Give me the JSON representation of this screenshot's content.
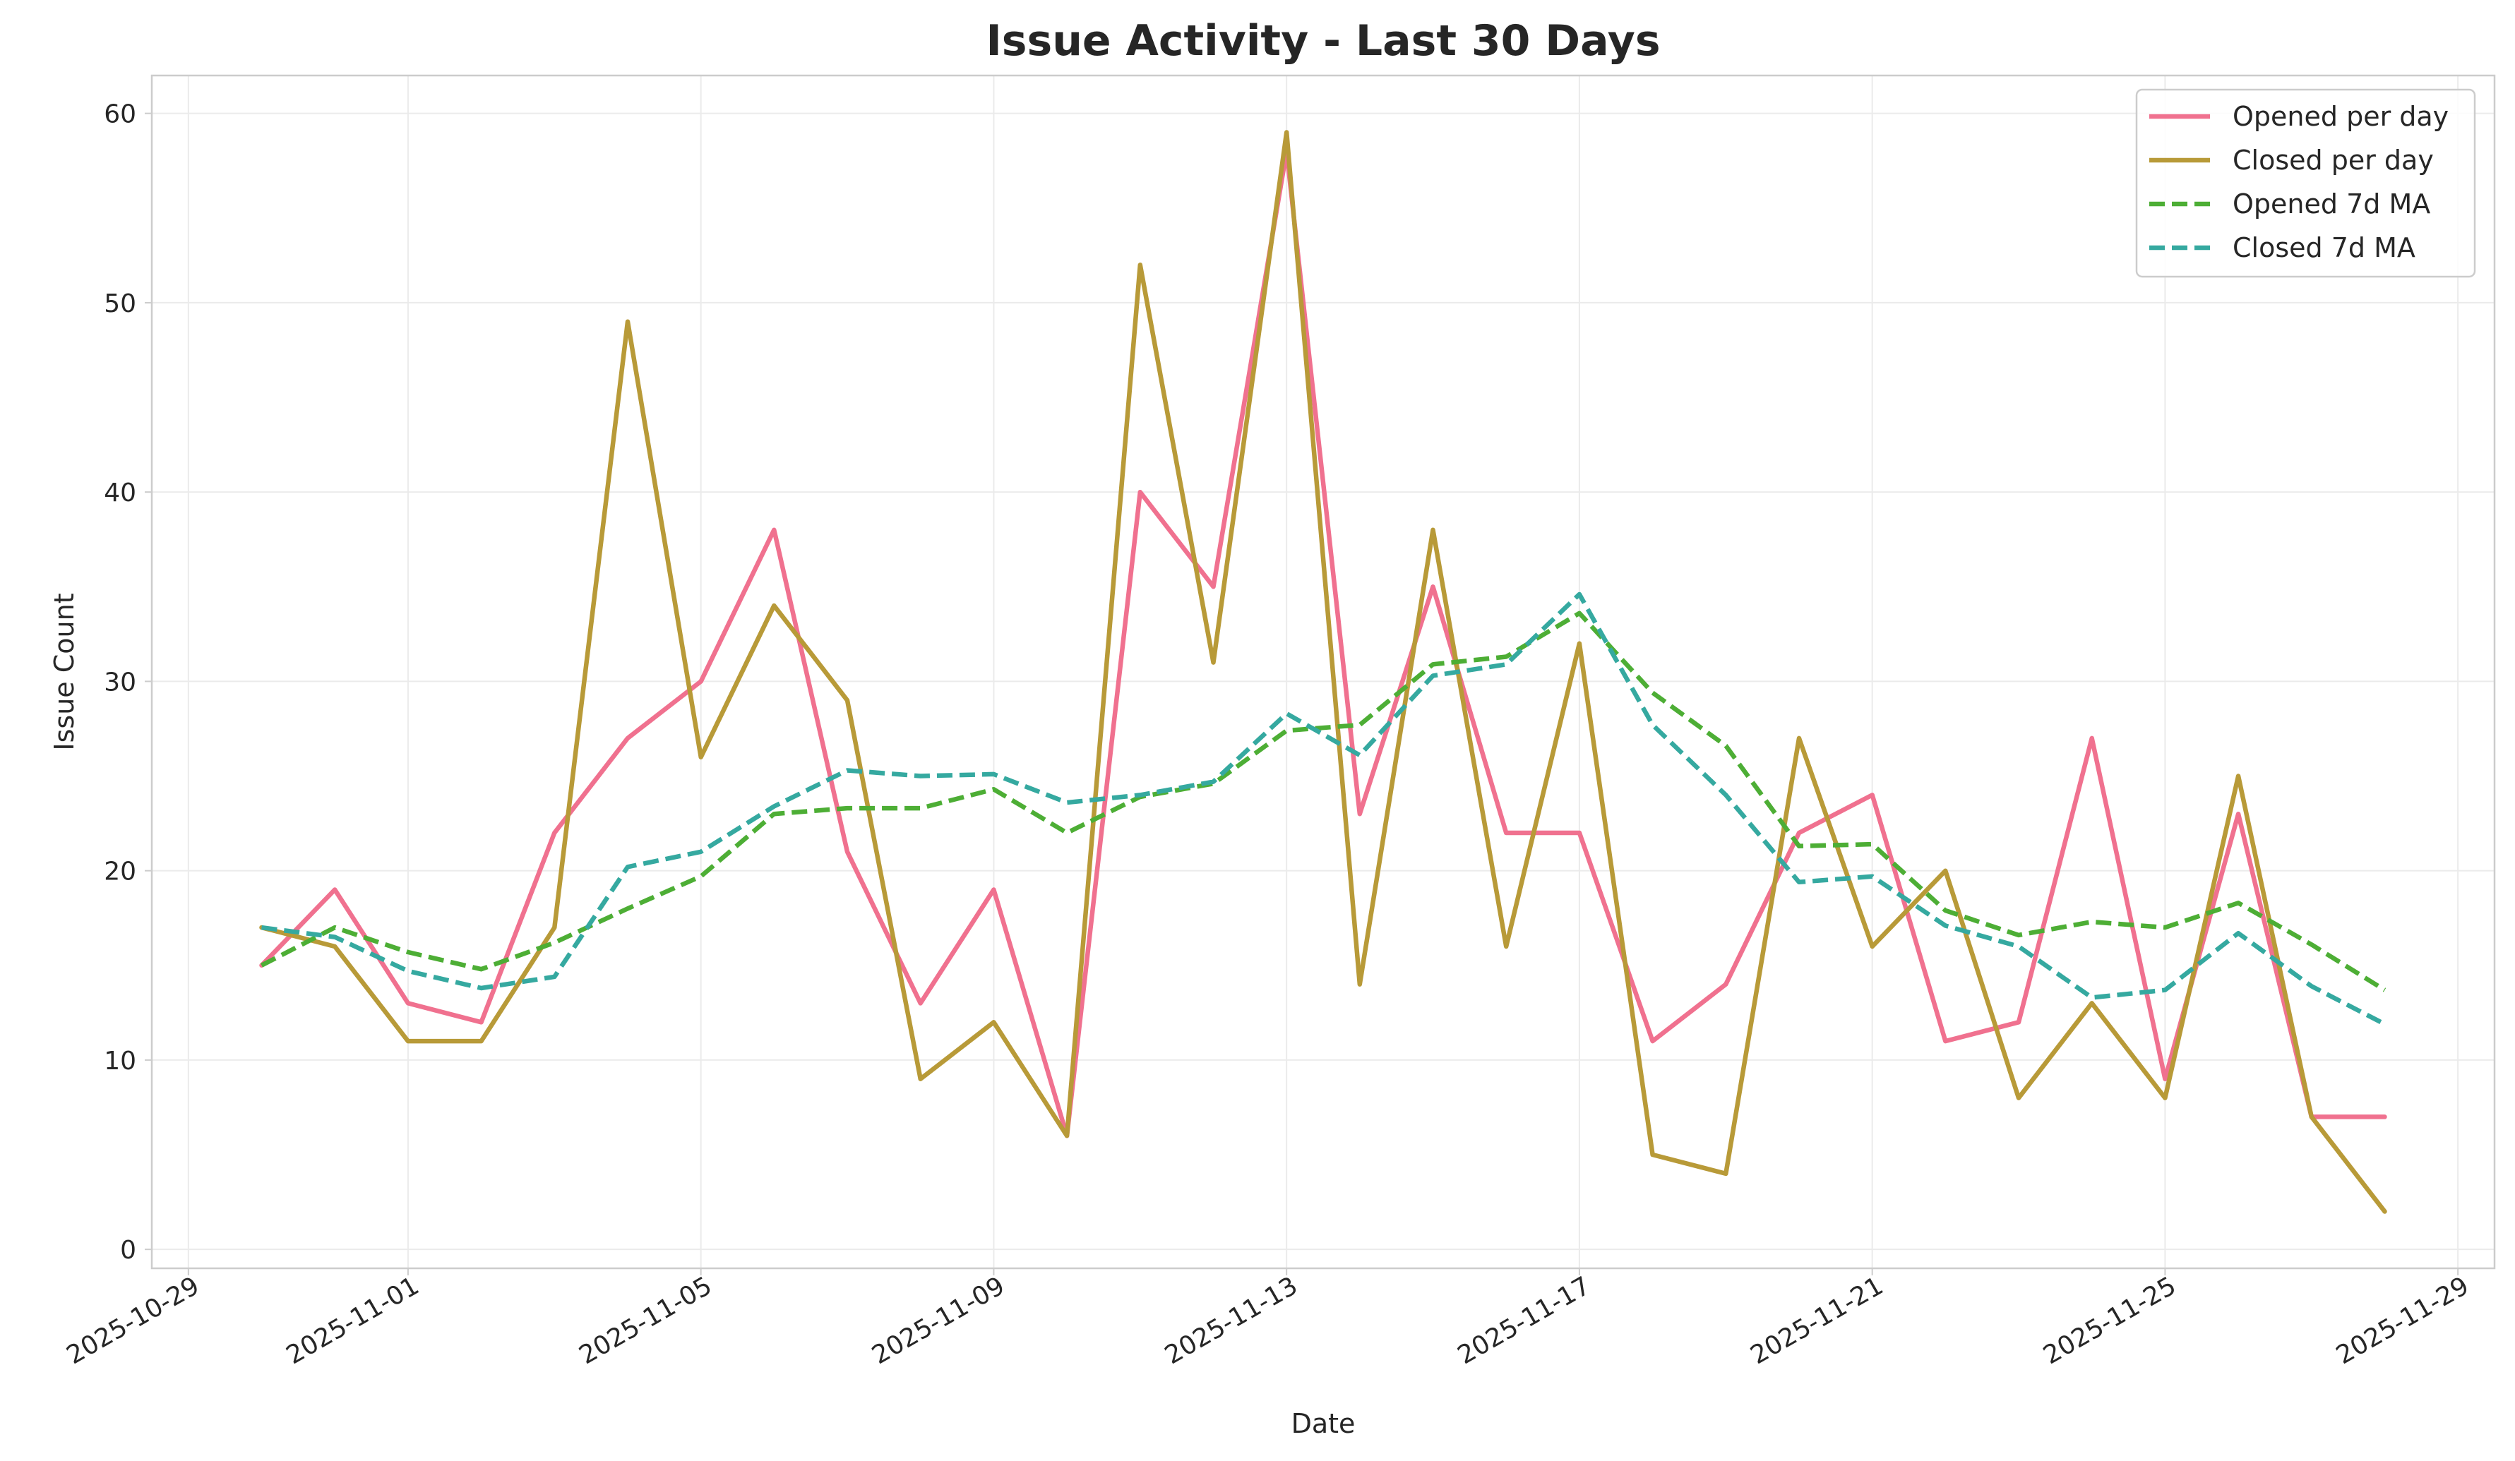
{
  "chart_data": {
    "type": "line",
    "title": "Issue Activity - Last 30 Days",
    "xlabel": "Date",
    "ylabel": "Issue Count",
    "ylim": [
      -1,
      62
    ],
    "yticks": [
      0,
      10,
      20,
      30,
      40,
      50,
      60
    ],
    "xlim": [
      "2025-10-28T12:00",
      "2025-11-29T12:00"
    ],
    "xticks": [
      "2025-10-29",
      "2025-11-01",
      "2025-11-05",
      "2025-11-09",
      "2025-11-13",
      "2025-11-17",
      "2025-11-21",
      "2025-11-25",
      "2025-11-29"
    ],
    "grid": true,
    "legend_position": "top-right",
    "x": [
      "2025-10-30",
      "2025-10-31",
      "2025-11-01",
      "2025-11-02",
      "2025-11-03",
      "2025-11-04",
      "2025-11-05",
      "2025-11-06",
      "2025-11-07",
      "2025-11-08",
      "2025-11-09",
      "2025-11-10",
      "2025-11-11",
      "2025-11-12",
      "2025-11-13",
      "2025-11-14",
      "2025-11-15",
      "2025-11-16",
      "2025-11-17",
      "2025-11-18",
      "2025-11-19",
      "2025-11-20",
      "2025-11-21",
      "2025-11-22",
      "2025-11-23",
      "2025-11-24",
      "2025-11-25",
      "2025-11-26",
      "2025-11-27",
      "2025-11-28"
    ],
    "series": [
      {
        "name": "Opened per day",
        "color": "#f0718f",
        "style": "solid",
        "values": [
          15,
          19,
          13,
          12,
          22,
          27,
          30,
          38,
          21,
          13,
          19,
          6,
          40,
          35,
          58,
          23,
          35,
          22,
          22,
          11,
          14,
          22,
          24,
          11,
          12,
          27,
          9,
          23,
          7,
          7
        ]
      },
      {
        "name": "Closed per day",
        "color": "#b89a38",
        "style": "solid",
        "values": [
          17,
          16,
          11,
          11,
          17,
          49,
          26,
          34,
          29,
          9,
          12,
          6,
          52,
          31,
          59,
          14,
          38,
          16,
          32,
          5,
          4,
          27,
          16,
          20,
          8,
          13,
          8,
          25,
          7,
          2
        ]
      },
      {
        "name": "Opened 7d MA",
        "color": "#4dae35",
        "style": "dashed",
        "values": [
          15,
          17,
          15.7,
          14.8,
          16.2,
          18,
          19.7,
          23,
          23.3,
          23.3,
          24.3,
          22,
          23.9,
          24.6,
          27.4,
          27.7,
          30.9,
          31.3,
          33.6,
          29.4,
          26.6,
          21.3,
          21.4,
          17.9,
          16.6,
          17.3,
          17,
          18.3,
          16.1,
          13.7
        ]
      },
      {
        "name": "Closed 7d MA",
        "color": "#35a9a0",
        "style": "dashed",
        "values": [
          17,
          16.5,
          14.7,
          13.8,
          14.4,
          20.2,
          21,
          23.4,
          25.3,
          25,
          25.1,
          23.6,
          24,
          24.7,
          28.3,
          26.1,
          30.3,
          30.9,
          34.6,
          27.7,
          24,
          19.4,
          19.7,
          17.1,
          16,
          13.3,
          13.7,
          16.7,
          13.9,
          11.9
        ]
      }
    ]
  }
}
